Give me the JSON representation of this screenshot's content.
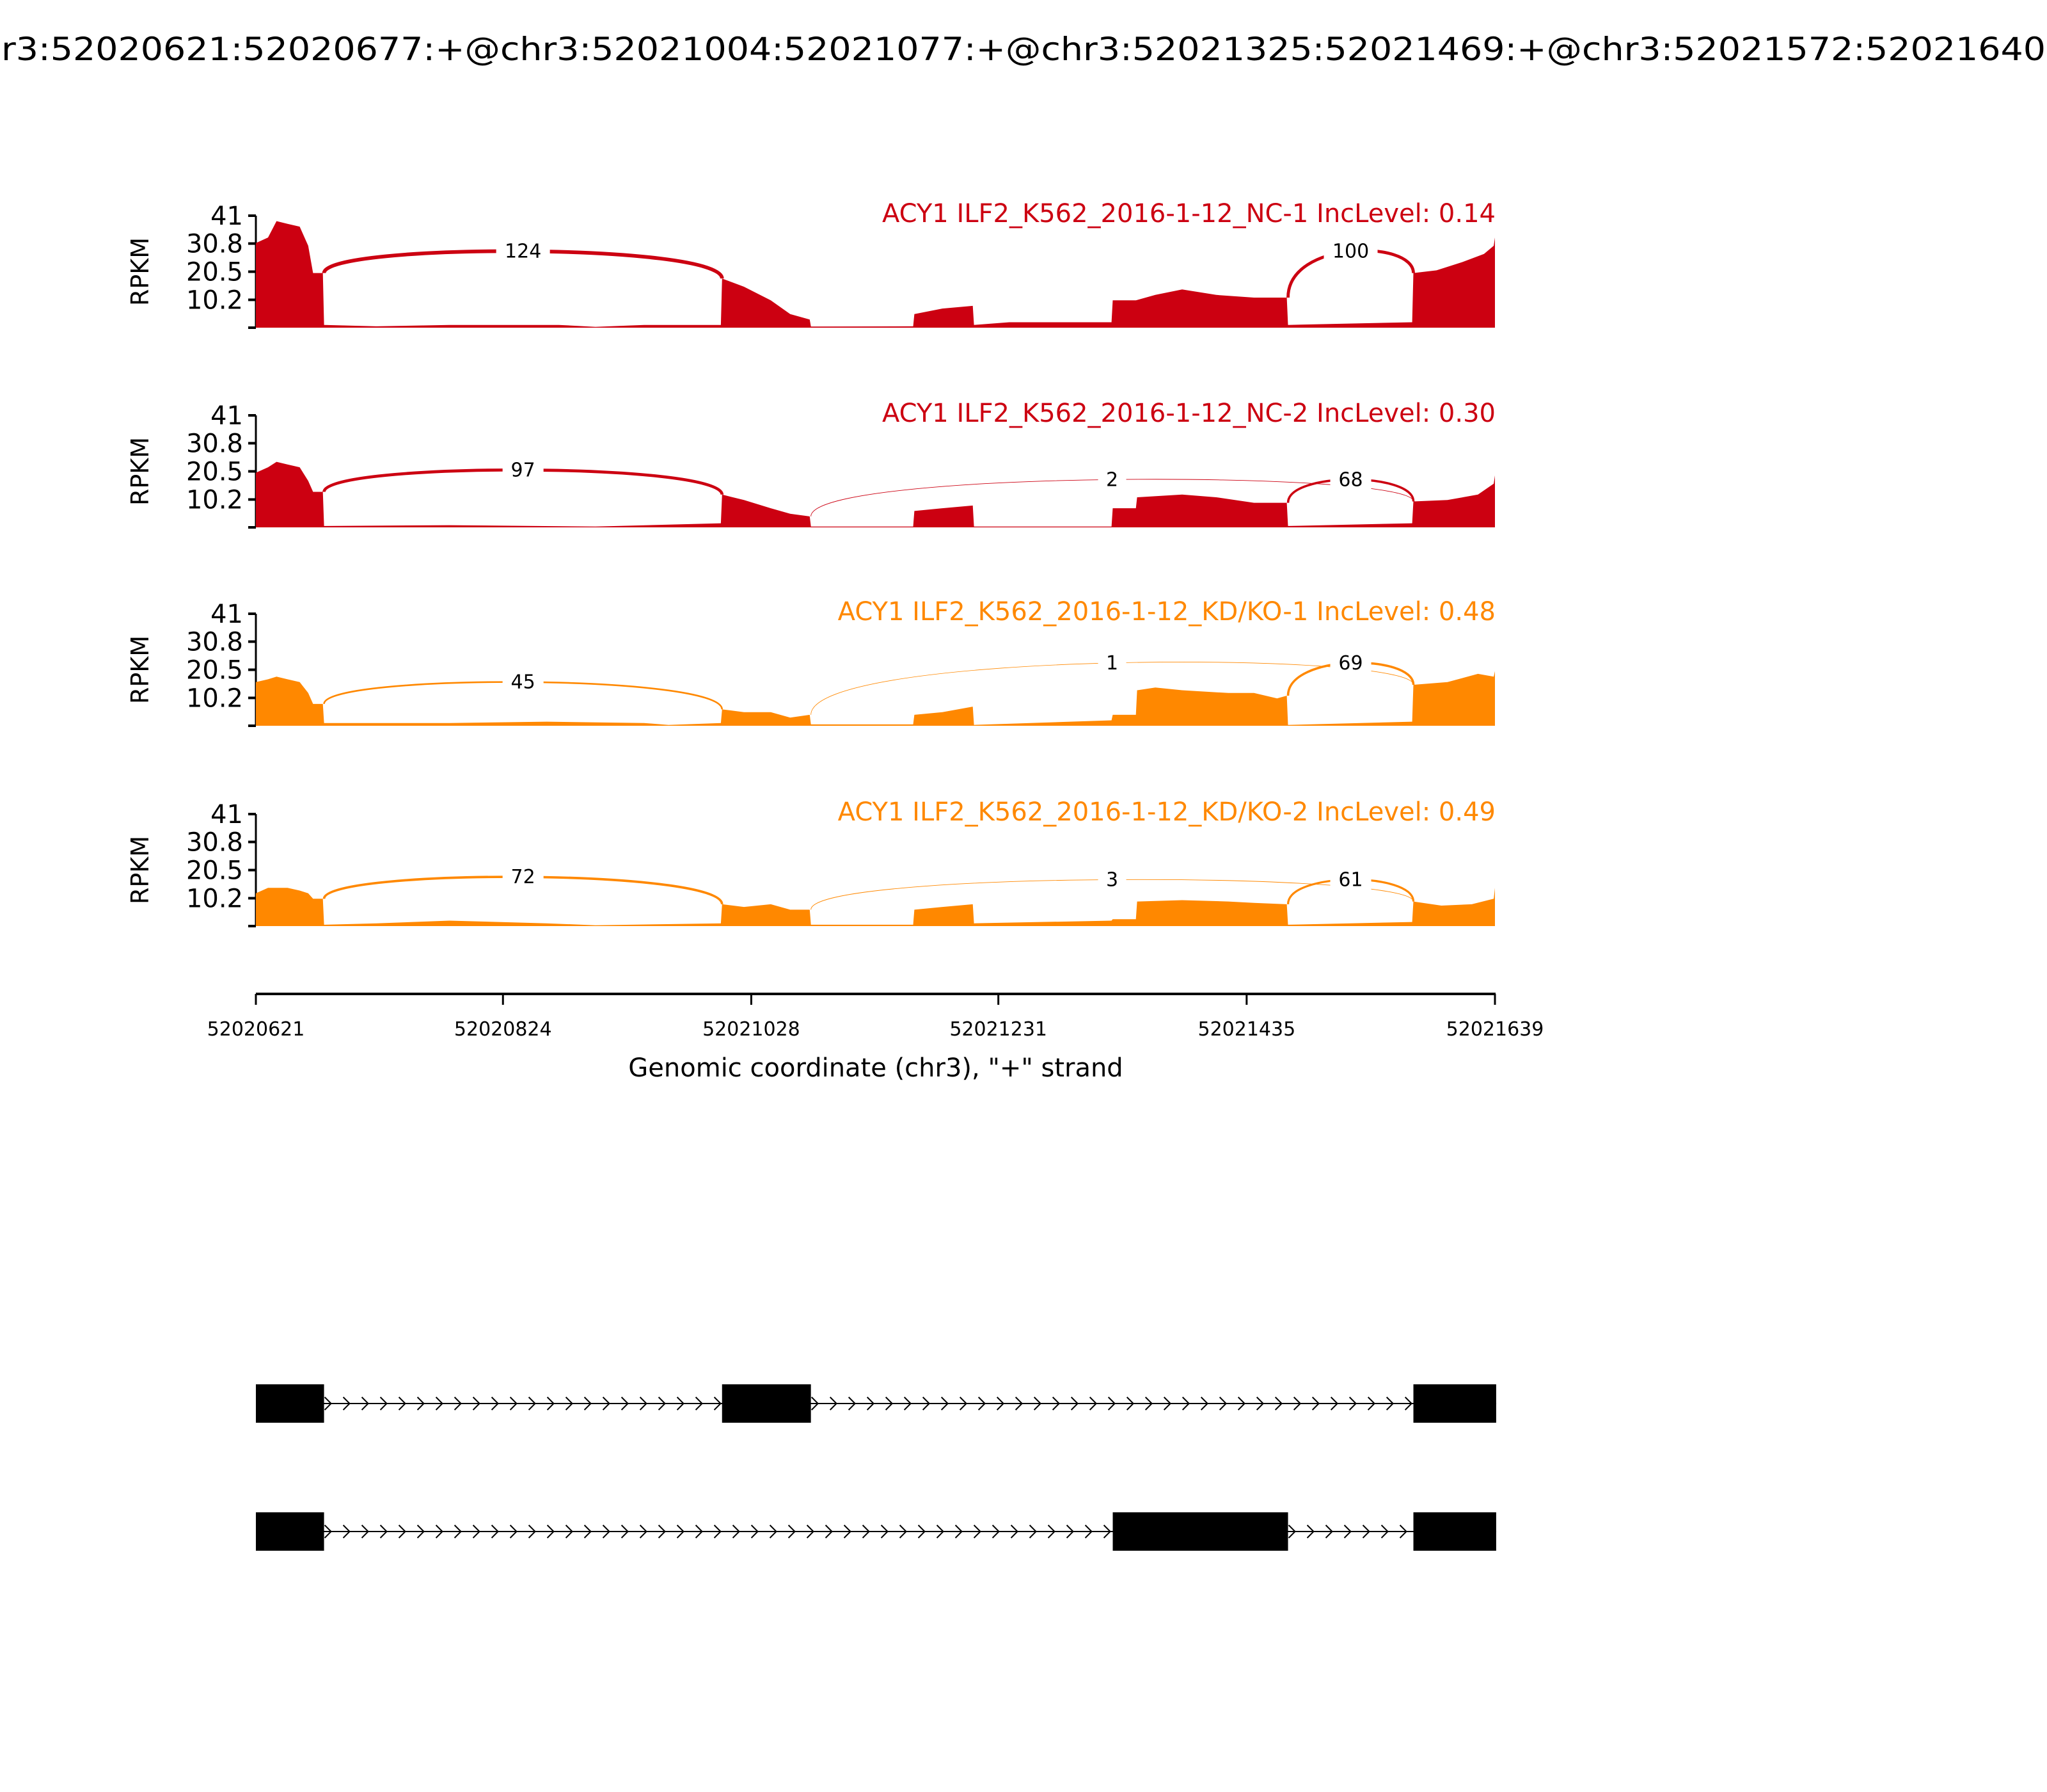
{
  "title": "r3:52020621:52020677:+@chr3:52021004:52021077:+@chr3:52021325:52021469:+@chr3:52021572:52021640",
  "colors": {
    "nc": "#CC0011",
    "kd": "#FF8800",
    "gene": "#000000"
  },
  "chart_data": {
    "type": "area",
    "title": "r3:52020621:52020677:+@chr3:52021004:52021077:+@chr3:52021325:52021469:+@chr3:52021572:52021640",
    "xlabel": "Genomic coordinate (chr3), \"+\" strand",
    "ylabel": "RPKM",
    "xlim": [
      52020621,
      52021639
    ],
    "ylim": [
      0,
      41
    ],
    "yticks": [
      "10.2",
      "20.5",
      "30.8",
      "41"
    ],
    "ytick_values": [
      10.2,
      20.5,
      30.8,
      41
    ],
    "xticks": [
      "52020621",
      "52020824",
      "52021028",
      "52021231",
      "52021435",
      "52021639"
    ],
    "xtick_values": [
      52020621,
      52020824,
      52021028,
      52021231,
      52021435,
      52021639
    ],
    "samples": [
      {
        "label": "ACY1 ILF2_K562_2016-1-12_NC-1 IncLevel: 0.14",
        "color_key": "nc",
        "coverage": [
          [
            52020621,
            31
          ],
          [
            52020631,
            33
          ],
          [
            52020638,
            39
          ],
          [
            52020647,
            38
          ],
          [
            52020657,
            37
          ],
          [
            52020664,
            30
          ],
          [
            52020668,
            20
          ],
          [
            52020676,
            20
          ],
          [
            52020677,
            1
          ],
          [
            52020720,
            0.5
          ],
          [
            52020780,
            1
          ],
          [
            52020870,
            1
          ],
          [
            52020900,
            0.3
          ],
          [
            52020940,
            1
          ],
          [
            52021003,
            1
          ],
          [
            52021004,
            18
          ],
          [
            52021022,
            15
          ],
          [
            52021044,
            10
          ],
          [
            52021060,
            5
          ],
          [
            52021076,
            3
          ],
          [
            52021077,
            0.4
          ],
          [
            52021161,
            0.5
          ],
          [
            52021162,
            5
          ],
          [
            52021185,
            7
          ],
          [
            52021210,
            8
          ],
          [
            52021211,
            1
          ],
          [
            52021240,
            2
          ],
          [
            52021324,
            2
          ],
          [
            52021325,
            10
          ],
          [
            52021344,
            10
          ],
          [
            52021360,
            12
          ],
          [
            52021382,
            14
          ],
          [
            52021410,
            12
          ],
          [
            52021441,
            11
          ],
          [
            52021468,
            11
          ],
          [
            52021469,
            1
          ],
          [
            52021571,
            2
          ],
          [
            52021572,
            20
          ],
          [
            52021591,
            21
          ],
          [
            52021612,
            24
          ],
          [
            52021630,
            27
          ],
          [
            52021638,
            30
          ],
          [
            52021639,
            33
          ]
        ],
        "junctions": [
          {
            "from": 52020677,
            "to": 52021004,
            "count": 124
          },
          {
            "from": 52021469,
            "to": 52021572,
            "count": 100
          }
        ]
      },
      {
        "label": "ACY1 ILF2_K562_2016-1-12_NC-2 IncLevel: 0.30",
        "color_key": "nc",
        "coverage": [
          [
            52020621,
            20
          ],
          [
            52020631,
            22
          ],
          [
            52020638,
            24
          ],
          [
            52020647,
            23
          ],
          [
            52020657,
            22
          ],
          [
            52020664,
            17
          ],
          [
            52020668,
            13
          ],
          [
            52020676,
            13
          ],
          [
            52020677,
            0.5
          ],
          [
            52020780,
            0.8
          ],
          [
            52020900,
            0.3
          ],
          [
            52021003,
            1.5
          ],
          [
            52021004,
            12
          ],
          [
            52021022,
            10
          ],
          [
            52021044,
            7
          ],
          [
            52021060,
            5
          ],
          [
            52021076,
            4
          ],
          [
            52021077,
            0.3
          ],
          [
            52021161,
            0.3
          ],
          [
            52021162,
            6
          ],
          [
            52021185,
            7
          ],
          [
            52021210,
            8
          ],
          [
            52021211,
            0.3
          ],
          [
            52021324,
            0.3
          ],
          [
            52021325,
            7
          ],
          [
            52021344,
            7
          ],
          [
            52021345,
            11
          ],
          [
            52021382,
            12
          ],
          [
            52021410,
            11
          ],
          [
            52021441,
            9
          ],
          [
            52021468,
            9
          ],
          [
            52021469,
            0.5
          ],
          [
            52021571,
            1.5
          ],
          [
            52021572,
            9.5
          ],
          [
            52021600,
            10
          ],
          [
            52021625,
            12
          ],
          [
            52021638,
            16
          ],
          [
            52021639,
            19
          ]
        ],
        "junctions": [
          {
            "from": 52020677,
            "to": 52021004,
            "count": 97
          },
          {
            "from": 52021077,
            "to": 52021572,
            "count": 2
          },
          {
            "from": 52021469,
            "to": 52021572,
            "count": 68
          }
        ]
      },
      {
        "label": "ACY1 ILF2_K562_2016-1-12_KD/KO-1 IncLevel: 0.48",
        "color_key": "kd",
        "coverage": [
          [
            52020621,
            16
          ],
          [
            52020631,
            17
          ],
          [
            52020638,
            18
          ],
          [
            52020647,
            17
          ],
          [
            52020657,
            16
          ],
          [
            52020664,
            12
          ],
          [
            52020668,
            8
          ],
          [
            52020676,
            8
          ],
          [
            52020677,
            1
          ],
          [
            52020780,
            1
          ],
          [
            52020860,
            1.5
          ],
          [
            52020940,
            1
          ],
          [
            52020960,
            0.3
          ],
          [
            52021003,
            1
          ],
          [
            52021004,
            6
          ],
          [
            52021022,
            5
          ],
          [
            52021044,
            5
          ],
          [
            52021060,
            3
          ],
          [
            52021076,
            4
          ],
          [
            52021077,
            0.5
          ],
          [
            52021161,
            0.5
          ],
          [
            52021162,
            4
          ],
          [
            52021185,
            5
          ],
          [
            52021210,
            7
          ],
          [
            52021211,
            0.3
          ],
          [
            52021324,
            2
          ],
          [
            52021325,
            4
          ],
          [
            52021344,
            4
          ],
          [
            52021345,
            13
          ],
          [
            52021360,
            14
          ],
          [
            52021382,
            13
          ],
          [
            52021420,
            12
          ],
          [
            52021441,
            12
          ],
          [
            52021460,
            10
          ],
          [
            52021468,
            11
          ],
          [
            52021469,
            0.3
          ],
          [
            52021571,
            1.5
          ],
          [
            52021572,
            15
          ],
          [
            52021600,
            16
          ],
          [
            52021625,
            19
          ],
          [
            52021638,
            18
          ],
          [
            52021639,
            20
          ]
        ],
        "junctions": [
          {
            "from": 52020677,
            "to": 52021004,
            "count": 45
          },
          {
            "from": 52021077,
            "to": 52021572,
            "count": 1
          },
          {
            "from": 52021469,
            "to": 52021572,
            "count": 69
          }
        ]
      },
      {
        "label": "ACY1 ILF2_K562_2016-1-12_KD/KO-2 IncLevel: 0.49",
        "color_key": "kd",
        "coverage": [
          [
            52020621,
            12
          ],
          [
            52020631,
            14
          ],
          [
            52020647,
            14
          ],
          [
            52020657,
            13
          ],
          [
            52020664,
            12
          ],
          [
            52020668,
            10
          ],
          [
            52020676,
            10
          ],
          [
            52020677,
            0.5
          ],
          [
            52020720,
            1
          ],
          [
            52020780,
            2
          ],
          [
            52020860,
            1
          ],
          [
            52020900,
            0.3
          ],
          [
            52021003,
            1
          ],
          [
            52021004,
            8
          ],
          [
            52021022,
            7
          ],
          [
            52021044,
            8
          ],
          [
            52021060,
            6
          ],
          [
            52021076,
            6
          ],
          [
            52021077,
            0.5
          ],
          [
            52021161,
            0.5
          ],
          [
            52021162,
            6
          ],
          [
            52021185,
            7
          ],
          [
            52021210,
            8
          ],
          [
            52021211,
            1
          ],
          [
            52021324,
            2
          ],
          [
            52021325,
            2.5
          ],
          [
            52021344,
            2.5
          ],
          [
            52021345,
            9
          ],
          [
            52021382,
            9.5
          ],
          [
            52021420,
            9
          ],
          [
            52021441,
            8.5
          ],
          [
            52021468,
            8
          ],
          [
            52021469,
            0.5
          ],
          [
            52021571,
            1.5
          ],
          [
            52021572,
            9
          ],
          [
            52021595,
            7.5
          ],
          [
            52021620,
            8
          ],
          [
            52021638,
            10
          ],
          [
            52021639,
            14
          ]
        ],
        "junctions": [
          {
            "from": 52020677,
            "to": 52021004,
            "count": 72
          },
          {
            "from": 52021077,
            "to": 52021572,
            "count": 3
          },
          {
            "from": 52021469,
            "to": 52021572,
            "count": 61
          }
        ]
      }
    ],
    "isoforms": [
      {
        "exons": [
          [
            52020621,
            52020677
          ],
          [
            52021004,
            52021077
          ],
          [
            52021572,
            52021640
          ]
        ]
      },
      {
        "exons": [
          [
            52020621,
            52020677
          ],
          [
            52021325,
            52021469
          ],
          [
            52021572,
            52021640
          ]
        ]
      }
    ]
  }
}
